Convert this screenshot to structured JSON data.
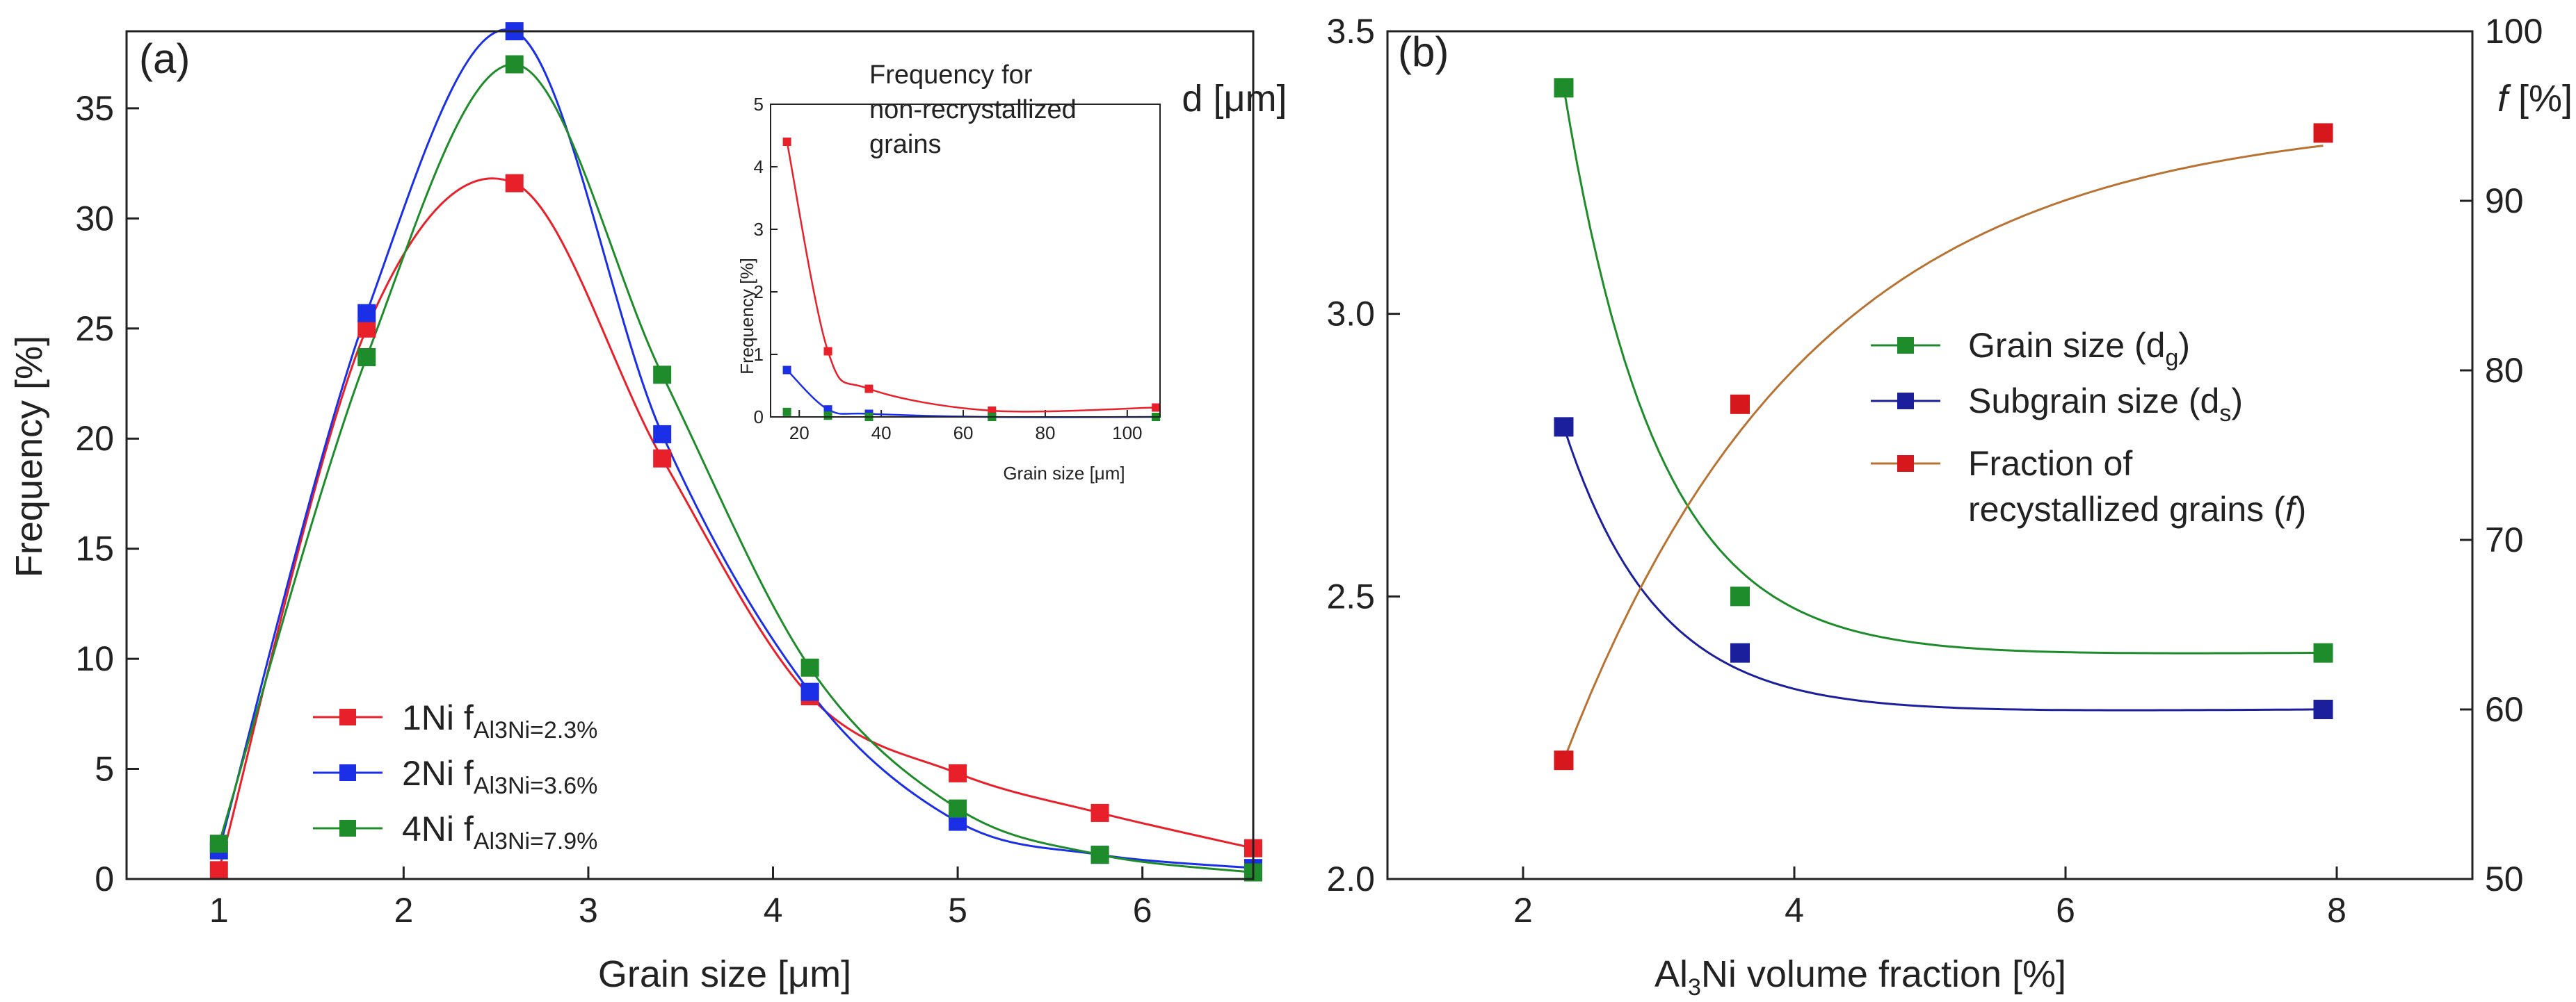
{
  "chart_data": [
    {
      "type": "scatter",
      "panel": "(a)",
      "xlabel": "Grain size [μm]",
      "ylabel": "Frequency [%]",
      "xlim": [
        0.5,
        6.6
      ],
      "ylim": [
        0,
        38.5
      ],
      "xticks": [
        "1",
        "2",
        "3",
        "4",
        "5",
        "6"
      ],
      "yticks": [
        "0",
        "5",
        "10",
        "15",
        "20",
        "25",
        "30",
        "35"
      ],
      "x": [
        1.0,
        1.8,
        2.6,
        3.4,
        4.2,
        5.0,
        5.77,
        6.6
      ],
      "series": [
        {
          "name": "1Ni",
          "label": "1Ni f",
          "sub": "Al3Ni=2.3%",
          "color": "#e8202a",
          "values": [
            0.4,
            25.0,
            31.6,
            19.1,
            8.3,
            4.8,
            3.0,
            1.4
          ]
        },
        {
          "name": "2Ni",
          "label": "2Ni f",
          "sub": "Al3Ni=3.6%",
          "color": "#1a2fe6",
          "values": [
            1.3,
            25.7,
            38.5,
            20.2,
            8.5,
            2.6,
            1.1,
            0.5
          ]
        },
        {
          "name": "4Ni",
          "label": "4Ni f",
          "sub": "Al3Ni=7.9%",
          "color": "#1e8c2b",
          "values": [
            1.6,
            23.7,
            37.0,
            22.9,
            9.6,
            3.2,
            1.1,
            0.3
          ]
        }
      ],
      "legend_position": "lower-left"
    },
    {
      "type": "scatter",
      "panel": "inset",
      "title": "Frequency for non-recrystallized grains",
      "title_lines": [
        "Frequency for",
        "non-recrystallized",
        "grains"
      ],
      "xlabel": "Grain size [μm]",
      "ylabel": "Frequency [%]",
      "xlim": [
        13,
        108
      ],
      "ylim": [
        0,
        5
      ],
      "xticks": [
        "20",
        "40",
        "60",
        "80",
        "100"
      ],
      "yticks": [
        "0",
        "1",
        "2",
        "3",
        "4",
        "5"
      ],
      "series": [
        {
          "name": "1Ni",
          "color": "#e8202a",
          "x": [
            17,
            27,
            37,
            67,
            107
          ],
          "values": [
            4.4,
            1.05,
            0.45,
            0.1,
            0.15
          ]
        },
        {
          "name": "2Ni",
          "color": "#1a2fe6",
          "x": [
            17,
            27,
            37,
            67,
            107
          ],
          "values": [
            0.75,
            0.12,
            0.05,
            0.0,
            0.0
          ]
        },
        {
          "name": "4Ni",
          "color": "#1e8c2b",
          "x": [
            17,
            27,
            37,
            67,
            107
          ],
          "values": [
            0.08,
            0.02,
            0.0,
            0.0,
            0.0
          ]
        }
      ]
    },
    {
      "type": "scatter",
      "panel": "(b)",
      "xlabel": "Al3Ni volume fraction [%]",
      "ylabel_left": "d [μm]",
      "ylabel_right": "f [%]",
      "xlim": [
        1,
        9
      ],
      "ylim_left": [
        2.0,
        3.5
      ],
      "ylim_right": [
        50,
        100
      ],
      "xticks": [
        "2",
        "4",
        "6",
        "8"
      ],
      "yticks_left": [
        "2.0",
        "2.5",
        "3.0",
        "3.5"
      ],
      "yticks_right": [
        "50",
        "60",
        "70",
        "80",
        "90",
        "100"
      ],
      "x": [
        2.3,
        3.6,
        7.9
      ],
      "series": [
        {
          "name": "Grain size (dg)",
          "label": "Grain size (d",
          "sub": "g",
          "color": "#1e8c2b",
          "axis": "left",
          "values": [
            3.4,
            2.5,
            2.4
          ]
        },
        {
          "name": "Subgrain size (ds)",
          "label": "Subgrain size (d",
          "sub": "s",
          "color": "#1c1f9c",
          "axis": "left",
          "values": [
            2.8,
            2.4,
            2.3
          ]
        },
        {
          "name": "Fraction of recystallized grains (f)",
          "label": "Fraction of",
          "label2": "recystallized grains (",
          "label2_italic": "f",
          "color": "#d6171c",
          "line_color": "#b87333",
          "axis": "right",
          "values": [
            57,
            78,
            94
          ]
        }
      ],
      "legend_position": "center-right"
    }
  ]
}
